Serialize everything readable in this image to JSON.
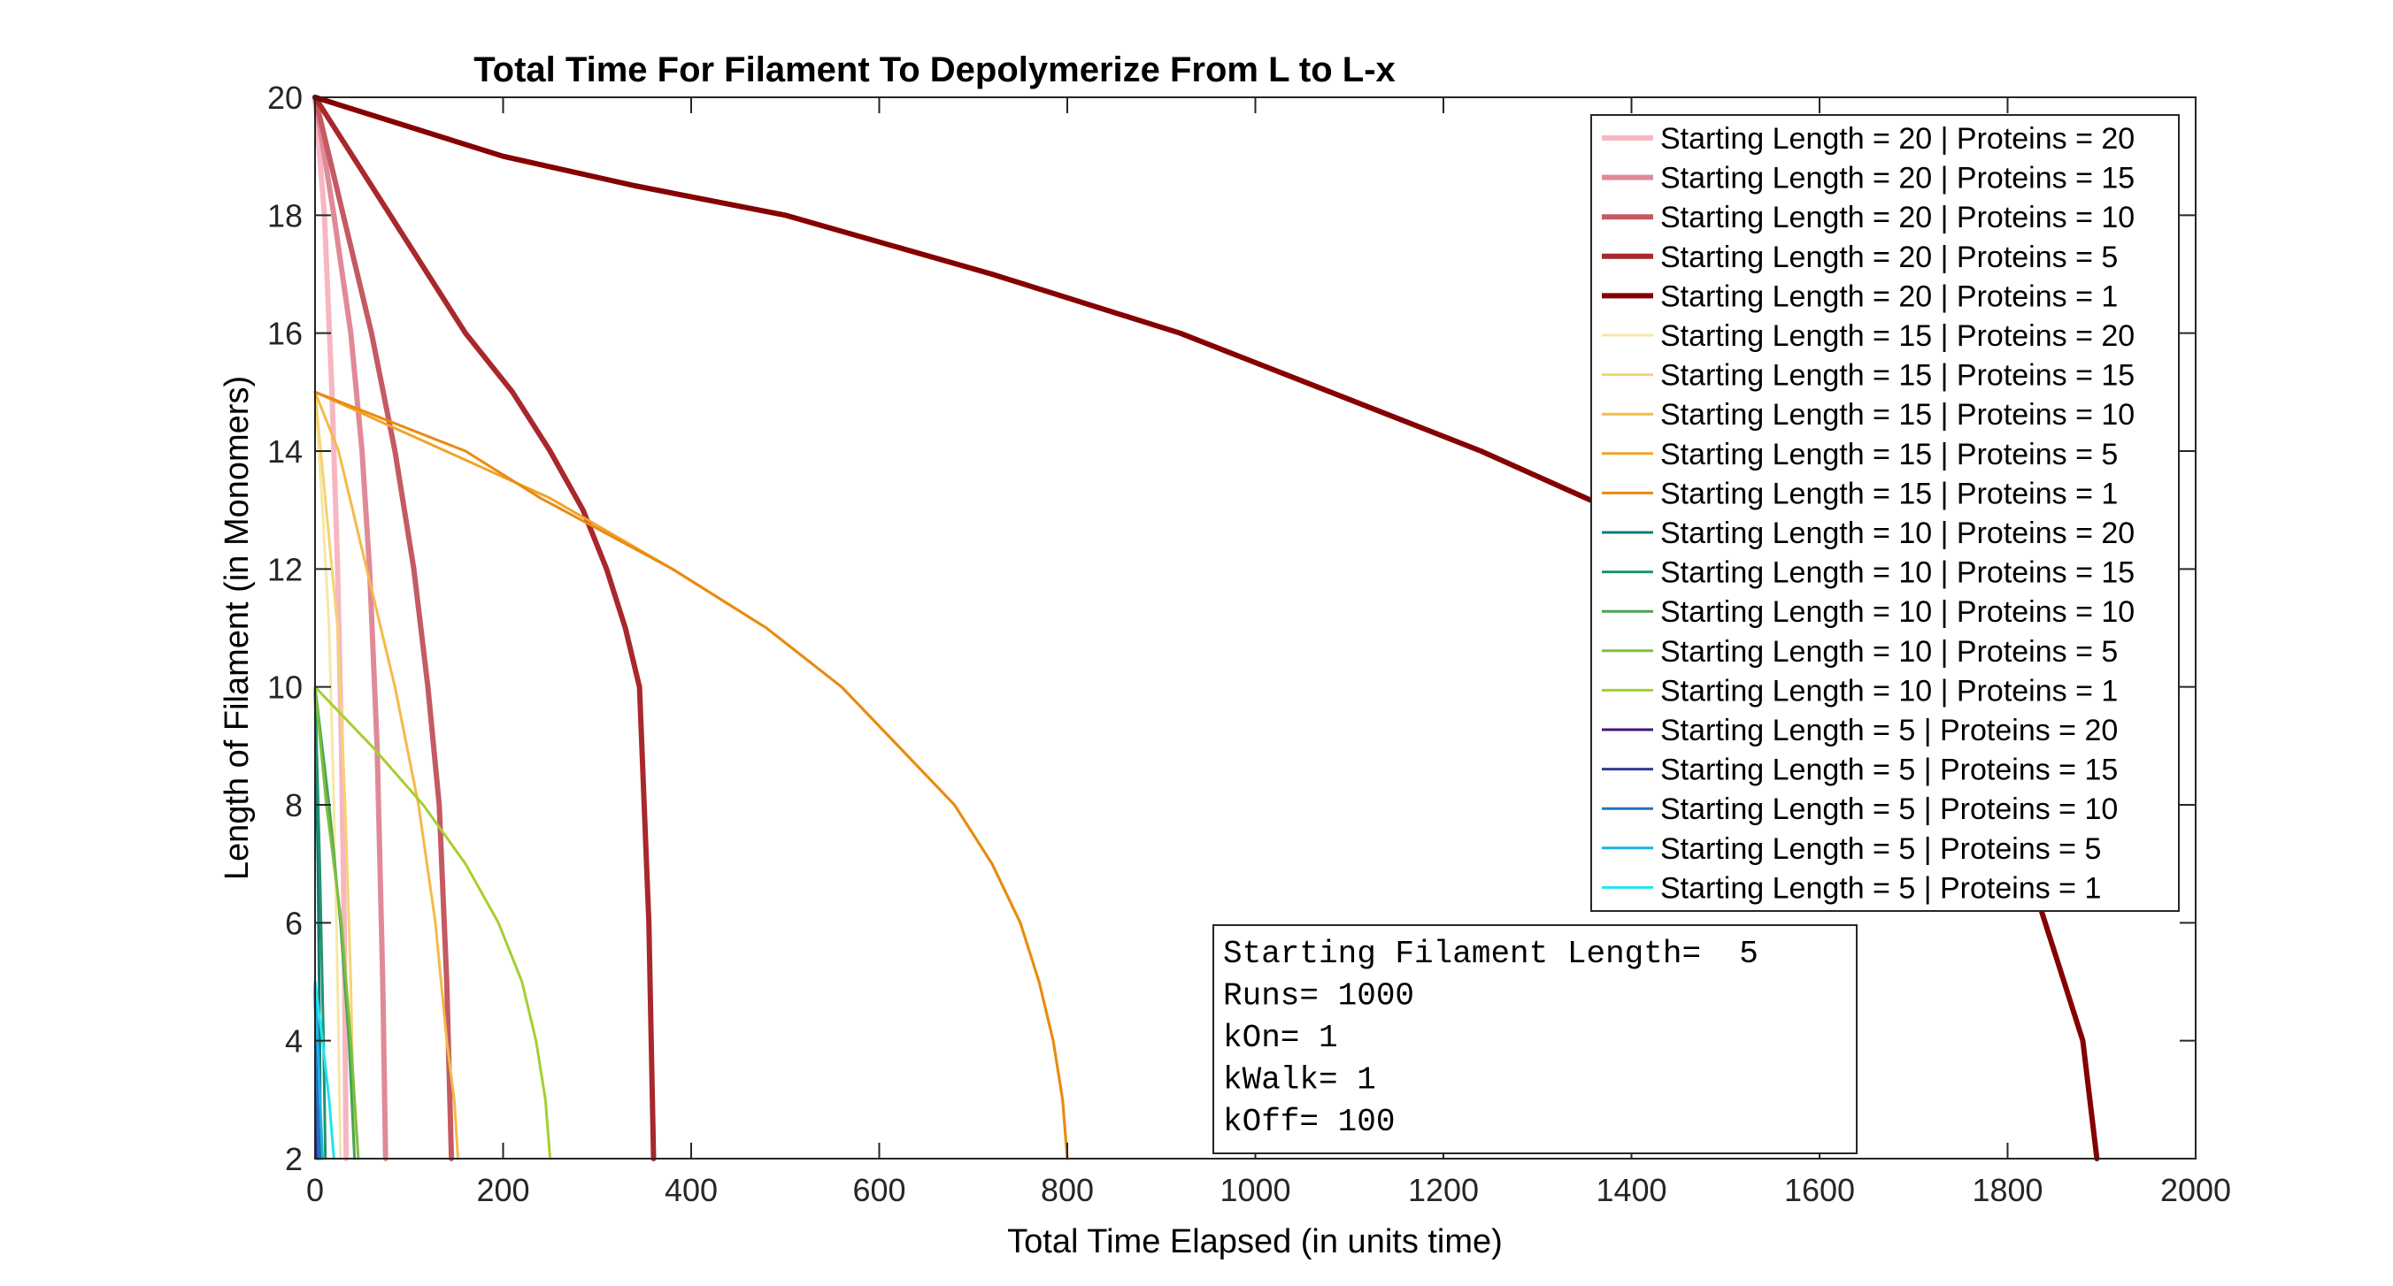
{
  "chart_data": {
    "type": "line",
    "title": "Total Time For Filament To Depolymerize From L to L-x",
    "xlabel": "Total Time Elapsed (in units time)",
    "ylabel": "Length of Filament (in Monomers)",
    "xlim": [
      0,
      2000
    ],
    "ylim": [
      2,
      20
    ],
    "xticks": [
      "0",
      "200",
      "400",
      "600",
      "800",
      "1000",
      "1200",
      "1400",
      "1600",
      "1800",
      "2000"
    ],
    "yticks": [
      "2",
      "4",
      "6",
      "8",
      "10",
      "12",
      "14",
      "16",
      "18",
      "20"
    ],
    "grid": false,
    "legend_position": "top-right",
    "series": [
      {
        "name": "Starting Length = 20 | Proteins = 20",
        "color": "#f7b6c2",
        "width": 6,
        "x": [
          0,
          10,
          18,
          24,
          28,
          31,
          33
        ],
        "y": [
          20,
          18,
          15,
          12,
          9,
          6,
          2
        ]
      },
      {
        "name": "Starting Length = 20 | Proteins = 15",
        "color": "#e08a97",
        "width": 6,
        "x": [
          0,
          20,
          38,
          50,
          58,
          66,
          72,
          75
        ],
        "y": [
          20,
          18,
          16,
          14,
          12,
          9,
          5,
          2
        ]
      },
      {
        "name": "Starting Length = 20 | Proteins = 10",
        "color": "#c45a62",
        "width": 6,
        "x": [
          0,
          30,
          60,
          85,
          105,
          120,
          132,
          140,
          145
        ],
        "y": [
          20,
          18,
          16,
          14,
          12,
          10,
          8,
          5,
          2
        ]
      },
      {
        "name": "Starting Length = 20 | Proteins = 5",
        "color": "#a8282c",
        "width": 6,
        "x": [
          0,
          80,
          160,
          210,
          250,
          285,
          310,
          330,
          345,
          355,
          360
        ],
        "y": [
          20,
          18,
          16,
          15,
          14,
          13,
          12,
          11,
          10,
          6,
          2
        ]
      },
      {
        "name": "Starting Length = 20 | Proteins = 1",
        "color": "#850000",
        "width": 6,
        "x": [
          0,
          200,
          340,
          500,
          720,
          920,
          1080,
          1240,
          1380,
          1500,
          1600,
          1700,
          1760,
          1800,
          1820,
          1840,
          1860,
          1880,
          1895
        ],
        "y": [
          20,
          19,
          18.5,
          18,
          17,
          16,
          15,
          14,
          13,
          12,
          11,
          10,
          9,
          8,
          7,
          6,
          5,
          4,
          2
        ]
      },
      {
        "name": "Starting Length = 15 | Proteins = 20",
        "color": "#f5e7a5",
        "width": 3,
        "x": [
          0,
          8,
          15,
          20,
          24,
          27
        ],
        "y": [
          15,
          13,
          11,
          8,
          5,
          2
        ]
      },
      {
        "name": "Starting Length = 15 | Proteins = 15",
        "color": "#f5d373",
        "width": 3,
        "x": [
          0,
          12,
          24,
          32,
          38,
          42
        ],
        "y": [
          15,
          13,
          11,
          8,
          5,
          2
        ]
      },
      {
        "name": "Starting Length = 15 | Proteins = 10",
        "color": "#f5b94a",
        "width": 3,
        "x": [
          0,
          25,
          55,
          85,
          110,
          128,
          140,
          148,
          152
        ],
        "y": [
          15,
          14,
          12,
          10,
          8,
          6,
          4,
          3,
          2
        ]
      },
      {
        "name": "Starting Length = 15 | Proteins = 5",
        "color": "#f0a42a",
        "width": 3,
        "x": [
          0,
          250,
          380,
          480,
          560,
          620,
          680,
          720,
          750,
          770,
          785,
          795,
          800
        ],
        "y": [
          15,
          13.2,
          12,
          11,
          10,
          9,
          8,
          7,
          6,
          5,
          4,
          3,
          2
        ]
      },
      {
        "name": "Starting Length = 15 | Proteins = 1",
        "color": "#ea8a10",
        "width": 3,
        "x": [
          0,
          160,
          240,
          380,
          480,
          560,
          620,
          680,
          720,
          750,
          770,
          785,
          795,
          800
        ],
        "y": [
          15,
          14,
          13.2,
          12,
          11,
          10,
          9,
          8,
          7,
          6,
          5,
          4,
          3,
          2
        ]
      },
      {
        "name": "Starting Length = 10 | Proteins = 20",
        "color": "#0f7a78",
        "width": 3,
        "x": [
          0,
          3,
          5,
          6
        ],
        "y": [
          10,
          7,
          4,
          2
        ]
      },
      {
        "name": "Starting Length = 10 | Proteins = 15",
        "color": "#22926e",
        "width": 3,
        "x": [
          0,
          5,
          9,
          11
        ],
        "y": [
          10,
          7,
          4,
          2
        ]
      },
      {
        "name": "Starting Length = 10 | Proteins = 10",
        "color": "#47a552",
        "width": 3,
        "x": [
          0,
          15,
          27,
          36,
          42
        ],
        "y": [
          10,
          8,
          6,
          4,
          2
        ]
      },
      {
        "name": "Starting Length = 10 | Proteins = 5",
        "color": "#7dbf3d",
        "width": 3,
        "x": [
          0,
          12,
          28,
          38,
          46
        ],
        "y": [
          10,
          8,
          6,
          4,
          2
        ]
      },
      {
        "name": "Starting Length = 10 | Proteins = 1",
        "color": "#a5cf30",
        "width": 3,
        "x": [
          0,
          60,
          115,
          160,
          195,
          220,
          235,
          245,
          250
        ],
        "y": [
          10,
          9,
          8,
          7,
          6,
          5,
          4,
          3,
          2
        ]
      },
      {
        "name": "Starting Length = 5 | Proteins = 20",
        "color": "#3f147a",
        "width": 3,
        "x": [
          0,
          1,
          2
        ],
        "y": [
          5,
          3.5,
          2
        ]
      },
      {
        "name": "Starting Length = 5 | Proteins = 15",
        "color": "#2e3e8f",
        "width": 3,
        "x": [
          0,
          1.5,
          3
        ],
        "y": [
          5,
          3.5,
          2
        ]
      },
      {
        "name": "Starting Length = 5 | Proteins = 10",
        "color": "#1f73c5",
        "width": 3,
        "x": [
          0,
          2,
          4
        ],
        "y": [
          5,
          3.5,
          2
        ]
      },
      {
        "name": "Starting Length = 5 | Proteins = 5",
        "color": "#1fb0e6",
        "width": 3,
        "x": [
          0,
          4,
          8
        ],
        "y": [
          5,
          3.5,
          2
        ]
      },
      {
        "name": "Starting Length = 5 | Proteins = 1",
        "color": "#20e4ee",
        "width": 3,
        "x": [
          0,
          8,
          15,
          20
        ],
        "y": [
          5,
          4,
          3,
          2
        ]
      }
    ],
    "annotation": [
      "Starting Filament Length=  5",
      "Runs= 1000",
      "kOn= 1",
      "kWalk= 1",
      "kOff= 100"
    ]
  }
}
